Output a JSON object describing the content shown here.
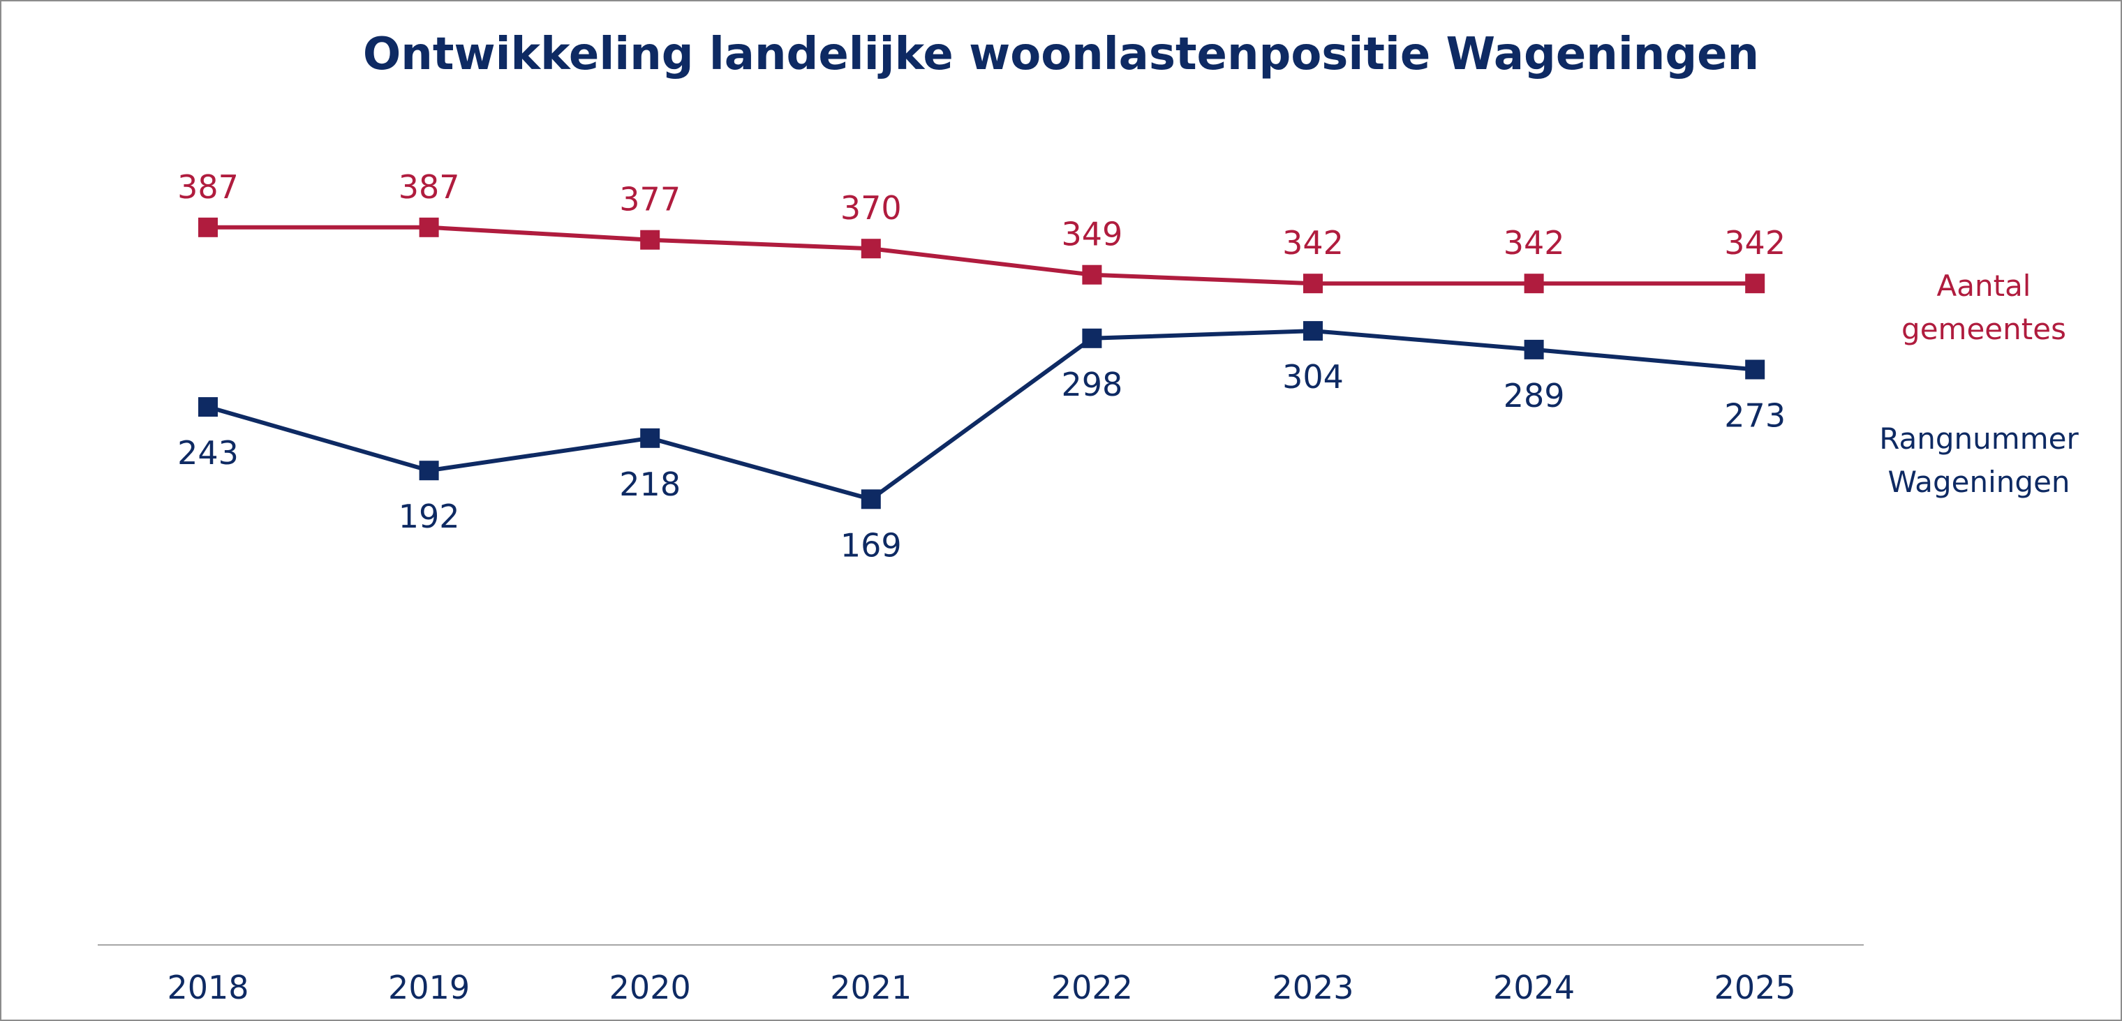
{
  "chart_data": {
    "type": "line",
    "title": "Ontwikkeling landelijke woonlastenpositie Wageningen",
    "xlabel": "",
    "ylabel": "",
    "categories": [
      "2018",
      "2019",
      "2020",
      "2021",
      "2022",
      "2023",
      "2024",
      "2025"
    ],
    "ylim": [
      0,
      420
    ],
    "grid": false,
    "legend": "right",
    "series": [
      {
        "key": "aantal",
        "name": "Aantal gemeentes",
        "legend_lines": [
          "Aantal",
          "gemeentes"
        ],
        "values": [
          387,
          387,
          377,
          370,
          349,
          342,
          342,
          342
        ],
        "labels": [
          "387",
          "387",
          "377",
          "370",
          "349",
          "342",
          "342",
          "342"
        ],
        "color": "#b01c3e",
        "label_position": "above"
      },
      {
        "key": "rang",
        "name": "Rangnummer Wageningen",
        "legend_lines": [
          "Rangnummer",
          "Wageningen"
        ],
        "values": [
          243,
          192,
          218,
          169,
          298,
          304,
          289,
          273
        ],
        "labels": [
          "243",
          "192",
          "218",
          "169",
          "298",
          "304",
          "289",
          "273"
        ],
        "color": "#0e2a63",
        "label_position": "below"
      }
    ]
  },
  "colors": {
    "title": "#0e2a63",
    "axis_text": "#0e2a63",
    "axis_line": "#a6a6a6"
  }
}
